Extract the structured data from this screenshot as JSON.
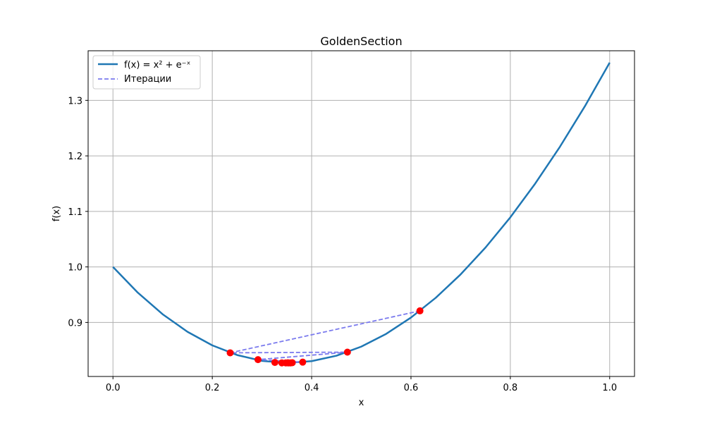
{
  "chart_data": {
    "type": "line",
    "title": "GoldenSection",
    "xlabel": "x",
    "ylabel": "f(x)",
    "xlim": [
      -0.05,
      1.05
    ],
    "ylim": [
      0.8027,
      1.3893
    ],
    "x_ticks": [
      0.0,
      0.2,
      0.4,
      0.6,
      0.8,
      1.0
    ],
    "x_tick_labels": [
      "0.0",
      "0.2",
      "0.4",
      "0.6",
      "0.8",
      "1.0"
    ],
    "y_ticks": [
      0.9,
      1.0,
      1.1,
      1.2,
      1.3
    ],
    "y_tick_labels": [
      "0.9",
      "1.0",
      "1.1",
      "1.2",
      "1.3"
    ],
    "grid": true,
    "legend_position": "top-left",
    "series": [
      {
        "name": "f(x) = x² + e⁻ˣ",
        "kind": "line",
        "color": "#1f77b4",
        "x": [
          0.0,
          0.05,
          0.1,
          0.15,
          0.2,
          0.25,
          0.3,
          0.35,
          0.4,
          0.45,
          0.5,
          0.55,
          0.6,
          0.65,
          0.7,
          0.75,
          0.8,
          0.85,
          0.9,
          0.95,
          1.0
        ],
        "y": [
          1.0,
          0.9537,
          0.9148,
          0.8832,
          0.8587,
          0.8413,
          0.8308,
          0.8272,
          0.8303,
          0.8401,
          0.8565,
          0.8794,
          0.9088,
          0.9445,
          0.9866,
          1.0349,
          1.0893,
          1.15,
          1.2166,
          1.2892,
          1.3679
        ]
      },
      {
        "name": "Итерации",
        "kind": "dashed-line",
        "color": "#7b7bee",
        "marker_color": "#ff0000",
        "x": [
          0.618,
          0.236,
          0.472,
          0.292,
          0.382,
          0.326,
          0.348,
          0.34,
          0.361,
          0.352,
          0.357,
          0.353
        ],
        "y": [
          0.9209,
          0.8453,
          0.8465,
          0.833,
          0.8285,
          0.828,
          0.8272,
          0.8272,
          0.8275,
          0.8273,
          0.8271,
          0.8272
        ]
      }
    ]
  }
}
